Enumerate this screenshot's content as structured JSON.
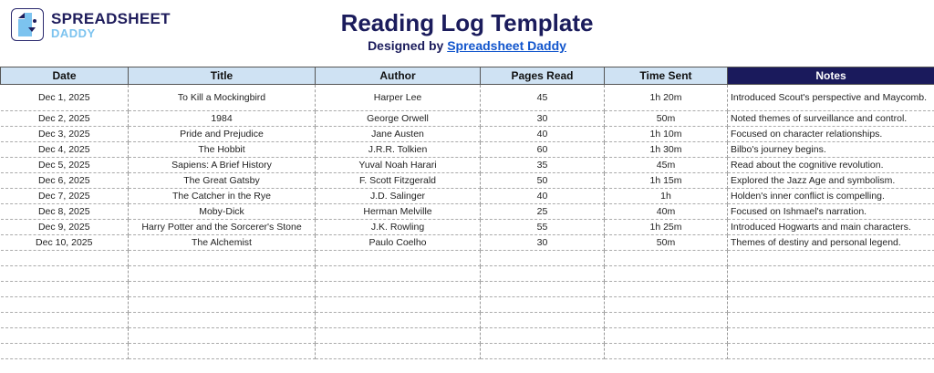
{
  "logo": {
    "line1": "SPREADSHEET",
    "line2": "DADDY"
  },
  "header": {
    "title": "Reading Log Template",
    "subtitle_prefix": "Designed by ",
    "subtitle_link": "Spreadsheet Daddy"
  },
  "columns": [
    "Date",
    "Title",
    "Author",
    "Pages Read",
    "Time Sent",
    "Notes"
  ],
  "colors": {
    "header_bg": "#cfe2f3",
    "notes_header_bg": "#1a1a5c",
    "title": "#1b1c5c",
    "link": "#1155cc"
  },
  "rows": [
    [
      "Dec 1, 2025",
      "To Kill a Mockingbird",
      "Harper Lee",
      "45",
      "1h 20m",
      "Introduced Scout's perspective and Maycomb."
    ],
    [
      "Dec 2, 2025",
      "1984",
      "George Orwell",
      "30",
      "50m",
      "Noted themes of surveillance and control."
    ],
    [
      "Dec 3, 2025",
      "Pride and Prejudice",
      "Jane Austen",
      "40",
      "1h 10m",
      "Focused on character relationships."
    ],
    [
      "Dec 4, 2025",
      "The Hobbit",
      "J.R.R. Tolkien",
      "60",
      "1h 30m",
      "Bilbo's journey begins."
    ],
    [
      "Dec 5, 2025",
      "Sapiens: A Brief History",
      "Yuval Noah Harari",
      "35",
      "45m",
      "Read about the cognitive revolution."
    ],
    [
      "Dec 6, 2025",
      "The Great Gatsby",
      "F. Scott Fitzgerald",
      "50",
      "1h 15m",
      "Explored the Jazz Age and symbolism."
    ],
    [
      "Dec 7, 2025",
      "The Catcher in the Rye",
      "J.D. Salinger",
      "40",
      "1h",
      "Holden's inner conflict is compelling."
    ],
    [
      "Dec 8, 2025",
      "Moby-Dick",
      "Herman Melville",
      "25",
      "40m",
      "Focused on Ishmael's narration."
    ],
    [
      "Dec 9, 2025",
      "Harry Potter and the Sorcerer's Stone",
      "J.K. Rowling",
      "55",
      "1h 25m",
      "Introduced Hogwarts and main characters."
    ],
    [
      "Dec 10, 2025",
      "The Alchemist",
      "Paulo Coelho",
      "30",
      "50m",
      "Themes of destiny and personal legend."
    ]
  ]
}
